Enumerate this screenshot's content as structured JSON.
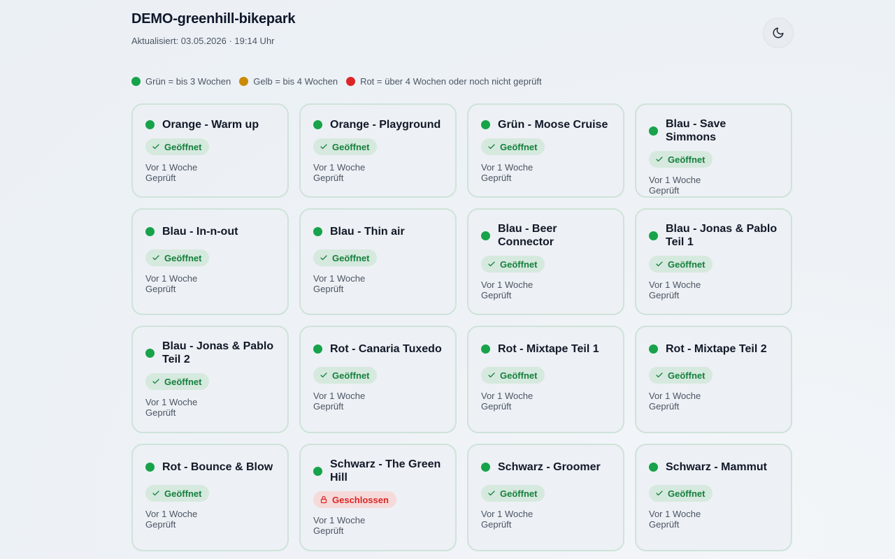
{
  "header": {
    "title": "DEMO-greenhill-bikepark",
    "updated": "Aktualisiert: 03.05.2026 · 19:14 Uhr",
    "theme_toggle_icon": "moon-icon"
  },
  "legend": [
    {
      "label": "Grün = bis 3 Wochen",
      "color": "#16a34a"
    },
    {
      "label": "Gelb = bis 4 Wochen",
      "color": "#ca8a04"
    },
    {
      "label": "Rot = über 4 Wochen oder noch nicht geprüft",
      "color": "#dc2626"
    }
  ],
  "colors": {
    "status_green": "#16a34a",
    "open_badge_bg": "#d6e9de",
    "open_badge_text": "#15803d",
    "closed_badge_bg": "#f6dada",
    "closed_badge_text": "#dc2626"
  },
  "trails": [
    {
      "name": "Orange - Warm up",
      "status": "Geöffnet",
      "state": "open",
      "checked_ago": "Vor 1 Woche",
      "checked_label": "Geprüft"
    },
    {
      "name": "Orange - Playground",
      "status": "Geöffnet",
      "state": "open",
      "checked_ago": "Vor 1 Woche",
      "checked_label": "Geprüft"
    },
    {
      "name": "Grün - Moose Cruise",
      "status": "Geöffnet",
      "state": "open",
      "checked_ago": "Vor 1 Woche",
      "checked_label": "Geprüft"
    },
    {
      "name": "Blau - Save Simmons",
      "status": "Geöffnet",
      "state": "open",
      "checked_ago": "Vor 1 Woche",
      "checked_label": "Geprüft"
    },
    {
      "name": "Blau - In-n-out",
      "status": "Geöffnet",
      "state": "open",
      "checked_ago": "Vor 1 Woche",
      "checked_label": "Geprüft"
    },
    {
      "name": "Blau - Thin air",
      "status": "Geöffnet",
      "state": "open",
      "checked_ago": "Vor 1 Woche",
      "checked_label": "Geprüft"
    },
    {
      "name": "Blau - Beer Connector",
      "status": "Geöffnet",
      "state": "open",
      "checked_ago": "Vor 1 Woche",
      "checked_label": "Geprüft"
    },
    {
      "name": "Blau - Jonas & Pablo Teil 1",
      "status": "Geöffnet",
      "state": "open",
      "checked_ago": "Vor 1 Woche",
      "checked_label": "Geprüft"
    },
    {
      "name": "Blau - Jonas & Pablo Teil 2",
      "status": "Geöffnet",
      "state": "open",
      "checked_ago": "Vor 1 Woche",
      "checked_label": "Geprüft"
    },
    {
      "name": "Rot - Canaria Tuxedo",
      "status": "Geöffnet",
      "state": "open",
      "checked_ago": "Vor 1 Woche",
      "checked_label": "Geprüft"
    },
    {
      "name": "Rot - Mixtape Teil 1",
      "status": "Geöffnet",
      "state": "open",
      "checked_ago": "Vor 1 Woche",
      "checked_label": "Geprüft"
    },
    {
      "name": "Rot - Mixtape Teil 2",
      "status": "Geöffnet",
      "state": "open",
      "checked_ago": "Vor 1 Woche",
      "checked_label": "Geprüft"
    },
    {
      "name": "Rot - Bounce & Blow",
      "status": "Geöffnet",
      "state": "open",
      "checked_ago": "Vor 1 Woche",
      "checked_label": "Geprüft"
    },
    {
      "name": "Schwarz - The Green Hill",
      "status": "Geschlossen",
      "state": "closed",
      "checked_ago": "Vor 1 Woche",
      "checked_label": "Geprüft"
    },
    {
      "name": "Schwarz - Groomer",
      "status": "Geöffnet",
      "state": "open",
      "checked_ago": "Vor 1 Woche",
      "checked_label": "Geprüft"
    },
    {
      "name": "Schwarz - Mammut",
      "status": "Geöffnet",
      "state": "open",
      "checked_ago": "Vor 1 Woche",
      "checked_label": "Geprüft"
    }
  ]
}
